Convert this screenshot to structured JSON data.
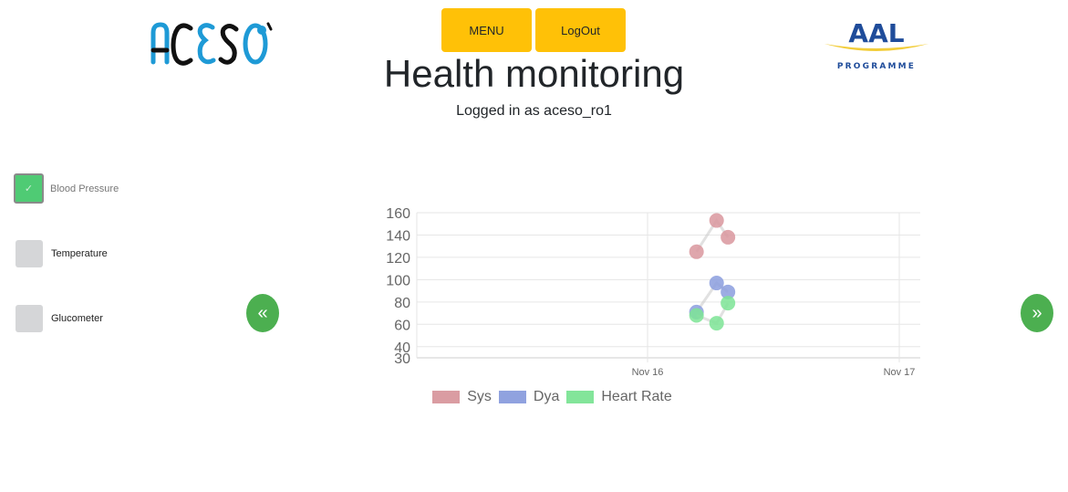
{
  "header": {
    "left_logo": "ACESO",
    "right_logo": {
      "title": "AAL",
      "subtitle": "PROGRAMME"
    },
    "menu_label": "MENU",
    "logout_label": "LogOut",
    "page_title": "Health monitoring",
    "logged_in_text": "Logged in as aceso_ro1"
  },
  "sensors": [
    {
      "label": "Blood Pressure",
      "checked": true,
      "check_glyph": "✓"
    },
    {
      "label": "Temperature",
      "checked": false
    },
    {
      "label": "Glucometer",
      "checked": false
    }
  ],
  "nav": {
    "prev_label": "«",
    "next_label": "»"
  },
  "colors": {
    "button_yellow": "#ffc107",
    "nav_green": "#4caf50",
    "checkbox_green": "#4fcb74",
    "sys": "#d9979e",
    "dya": "#8b9ede",
    "heart_rate": "#7de495"
  },
  "chart_data": {
    "type": "line",
    "title": "",
    "xlabel": "",
    "ylabel": "",
    "x_ticks": [
      "Nov 16",
      "Nov 17"
    ],
    "y_ticks": [
      30,
      40,
      60,
      80,
      100,
      120,
      140,
      160
    ],
    "ylim": [
      30,
      160
    ],
    "grid": true,
    "legend_position": "bottom",
    "x": [
      "Nov 16 04:40",
      "Nov 16 06:35",
      "Nov 16 07:40"
    ],
    "series": [
      {
        "name": "Sys",
        "values": [
          125,
          153,
          138
        ],
        "color": "#d9979e"
      },
      {
        "name": "Dya",
        "values": [
          71,
          97,
          89
        ],
        "color": "#8b9ede"
      },
      {
        "name": "Heart Rate",
        "values": [
          68,
          61,
          79
        ],
        "color": "#7de495"
      }
    ]
  }
}
